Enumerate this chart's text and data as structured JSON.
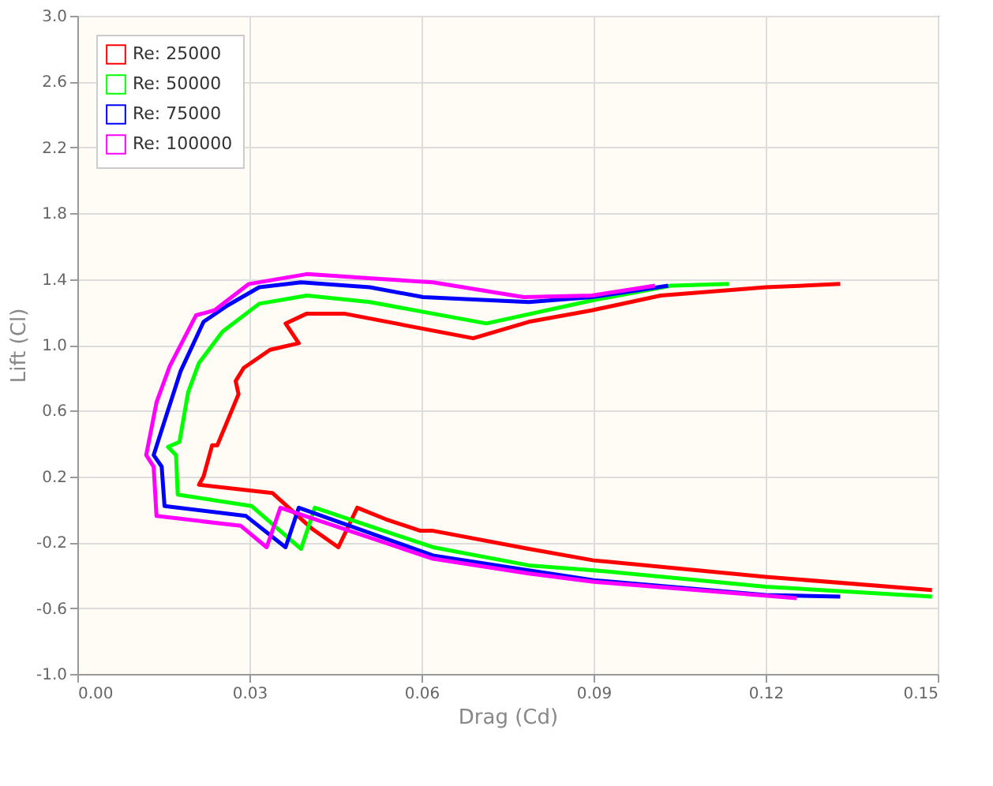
{
  "chart_data": {
    "type": "line",
    "xlabel": "Drag (Cd)",
    "ylabel": "Lift (Cl)",
    "xlim": [
      0,
      0.15
    ],
    "xticks": [
      {
        "value": 0,
        "label": "0.00"
      },
      {
        "value": 0.03,
        "label": "0.03"
      },
      {
        "value": 0.06,
        "label": "0.06"
      },
      {
        "value": 0.09,
        "label": "0.09"
      },
      {
        "value": 0.12,
        "label": "0.12"
      },
      {
        "value": 0.15,
        "label": "0.15"
      }
    ],
    "ylim": [
      -1.0,
      3.0
    ],
    "yticks": [
      {
        "value": -1,
        "label": "-1.0"
      },
      -0.6,
      -0.2,
      0.2,
      0.6,
      {
        "value": 1,
        "label": "1.0"
      },
      1.4,
      1.8,
      2.2,
      2.6,
      {
        "value": 3,
        "label": "3.0"
      }
    ],
    "grid": true,
    "legend": "top left",
    "marker": "none",
    "line_style": "solid",
    "series": [
      {
        "name": "Re: 25000",
        "color": "#ff0000",
        "x": [
          0.149,
          0.12,
          0.09,
          0.0787,
          0.062,
          0.0598,
          0.0538,
          0.0488,
          0.0455,
          0.041,
          0.034,
          0.0212,
          0.022,
          0.0235,
          0.0244,
          0.0281,
          0.0276,
          0.029,
          0.0336,
          0.0386,
          0.0363,
          0.04,
          0.0465,
          0.069,
          0.0787,
          0.0897,
          0.1017,
          0.12,
          0.133
        ],
        "values": [
          -0.49,
          -0.41,
          -0.31,
          -0.24,
          -0.13,
          -0.13,
          -0.06,
          0.01,
          -0.23,
          -0.12,
          0.1,
          0.15,
          0.2,
          0.39,
          0.39,
          0.7,
          0.78,
          0.86,
          0.97,
          1.01,
          1.13,
          1.19,
          1.19,
          1.04,
          1.14,
          1.21,
          1.3,
          1.35,
          1.37
        ]
      },
      {
        "name": "Re: 50000",
        "color": "#00ff00",
        "x": [
          0.149,
          0.12,
          0.09,
          0.0787,
          0.062,
          0.0414,
          0.039,
          0.0304,
          0.0175,
          0.0172,
          0.0158,
          0.0178,
          0.0193,
          0.0212,
          0.0253,
          0.0317,
          0.04,
          0.051,
          0.0713,
          0.0897,
          0.1035,
          0.1136
        ],
        "values": [
          -0.53,
          -0.47,
          -0.37,
          -0.34,
          -0.23,
          0.01,
          -0.24,
          0.02,
          0.09,
          0.33,
          0.38,
          0.41,
          0.71,
          0.89,
          1.08,
          1.25,
          1.3,
          1.26,
          1.13,
          1.27,
          1.36,
          1.37
        ]
      },
      {
        "name": "Re: 75000",
        "color": "#0000ff",
        "x": [
          0.133,
          0.12,
          0.09,
          0.0787,
          0.062,
          0.0386,
          0.0363,
          0.0294,
          0.0152,
          0.0147,
          0.0133,
          0.0156,
          0.018,
          0.022,
          0.0262,
          0.0317,
          0.039,
          0.051,
          0.0603,
          0.0787,
          0.0897,
          0.103
        ],
        "values": [
          -0.53,
          -0.52,
          -0.43,
          -0.37,
          -0.28,
          0.01,
          -0.23,
          -0.04,
          0.02,
          0.26,
          0.33,
          0.58,
          0.84,
          1.14,
          1.24,
          1.35,
          1.38,
          1.35,
          1.29,
          1.26,
          1.29,
          1.36
        ]
      },
      {
        "name": "Re: 100000",
        "color": "#ff00ff",
        "x": [
          0.1254,
          0.09,
          0.0787,
          0.062,
          0.0354,
          0.033,
          0.0285,
          0.0138,
          0.0133,
          0.012,
          0.0138,
          0.0161,
          0.0207,
          0.0239,
          0.0299,
          0.04,
          0.0529,
          0.062,
          0.0778,
          0.0897,
          0.1007
        ],
        "values": [
          -0.54,
          -0.44,
          -0.39,
          -0.3,
          0.01,
          -0.23,
          -0.1,
          -0.04,
          0.26,
          0.33,
          0.65,
          0.87,
          1.18,
          1.21,
          1.37,
          1.43,
          1.4,
          1.38,
          1.29,
          1.3,
          1.36
        ]
      }
    ]
  }
}
